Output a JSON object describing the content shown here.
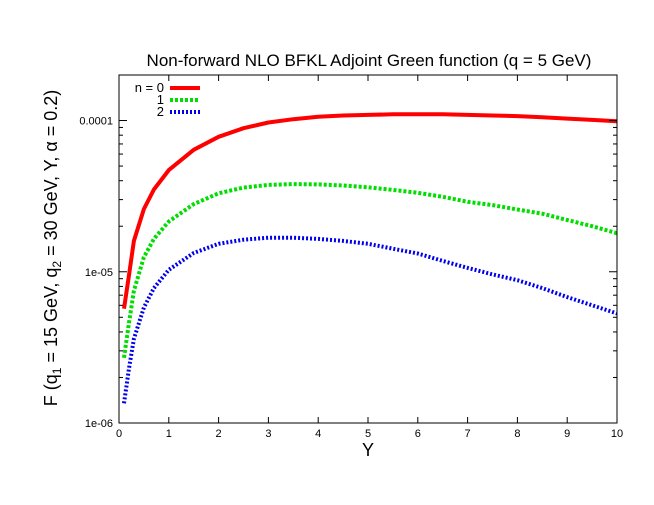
{
  "chart_data": {
    "type": "line",
    "title": "Non-forward NLO BFKL Adjoint Green function (q = 5 GeV)",
    "xlabel": "Y",
    "ylabel_parts": [
      "F (q",
      "1",
      " = 15 GeV, q",
      "2",
      " = 30 GeV, Y, α = 0.2)"
    ],
    "xlim": [
      0,
      10
    ],
    "ylim": [
      1e-06,
      0.0002
    ],
    "yscale": "log",
    "x_ticks": [
      "0",
      "1",
      "2",
      "3",
      "4",
      "5",
      "6",
      "7",
      "8",
      "9",
      "10"
    ],
    "y_ticks": [
      "1e-06",
      "1e-05",
      "0.0001"
    ],
    "y_tick_values": [
      1e-06,
      1e-05,
      0.0001
    ],
    "legend_position": "top-left",
    "grid": false,
    "series": [
      {
        "name": "n = 0",
        "color": "#ff0000",
        "style": "solid",
        "x": [
          0.1,
          0.2,
          0.3,
          0.5,
          0.7,
          1.0,
          1.5,
          2.0,
          2.5,
          3.0,
          3.5,
          4.0,
          4.5,
          5.0,
          5.5,
          6.0,
          6.5,
          7.0,
          7.5,
          8.0,
          8.5,
          9.0,
          9.5,
          10.0
        ],
        "y": [
          5.7e-06,
          9.5e-06,
          1.6e-05,
          2.6e-05,
          3.5e-05,
          4.7e-05,
          6.4e-05,
          7.8e-05,
          8.9e-05,
          9.7e-05,
          0.000102,
          0.000106,
          0.000108,
          0.000109,
          0.00011,
          0.00011,
          0.00011,
          0.000109,
          0.000108,
          0.000107,
          0.000105,
          0.000103,
          0.000101,
          9.9e-05
        ]
      },
      {
        "name": "1",
        "color": "#00dd00",
        "style": "dashed",
        "x": [
          0.1,
          0.2,
          0.3,
          0.5,
          0.7,
          1.0,
          1.5,
          2.0,
          2.5,
          3.0,
          3.5,
          4.0,
          4.5,
          5.0,
          5.5,
          6.0,
          6.5,
          7.0,
          7.5,
          8.0,
          8.5,
          9.0,
          9.5,
          10.0
        ],
        "y": [
          2.7e-06,
          4.6e-06,
          7.5e-06,
          1.25e-05,
          1.65e-05,
          2.15e-05,
          2.8e-05,
          3.3e-05,
          3.6e-05,
          3.75e-05,
          3.8e-05,
          3.78e-05,
          3.72e-05,
          3.62e-05,
          3.48e-05,
          3.33e-05,
          3.13e-05,
          2.9e-05,
          2.76e-05,
          2.58e-05,
          2.42e-05,
          2.2e-05,
          2e-05,
          1.8e-05
        ]
      },
      {
        "name": "2",
        "color": "#0000ee",
        "style": "dotted",
        "x": [
          0.1,
          0.2,
          0.3,
          0.5,
          0.7,
          1.0,
          1.5,
          2.0,
          2.5,
          3.0,
          3.5,
          4.0,
          4.5,
          5.0,
          5.5,
          6.0,
          6.5,
          7.0,
          7.5,
          8.0,
          8.5,
          9.0,
          9.5,
          10.0
        ],
        "y": [
          1.35e-06,
          2.3e-06,
          3.6e-06,
          5.8e-06,
          7.8e-06,
          1.03e-05,
          1.33e-05,
          1.53e-05,
          1.63e-05,
          1.68e-05,
          1.68e-05,
          1.65e-05,
          1.6e-05,
          1.53e-05,
          1.42e-05,
          1.32e-05,
          1.18e-05,
          1.06e-05,
          9.6e-06,
          8.8e-06,
          7.8e-06,
          6.8e-06,
          6e-06,
          5.3e-06
        ]
      }
    ]
  }
}
